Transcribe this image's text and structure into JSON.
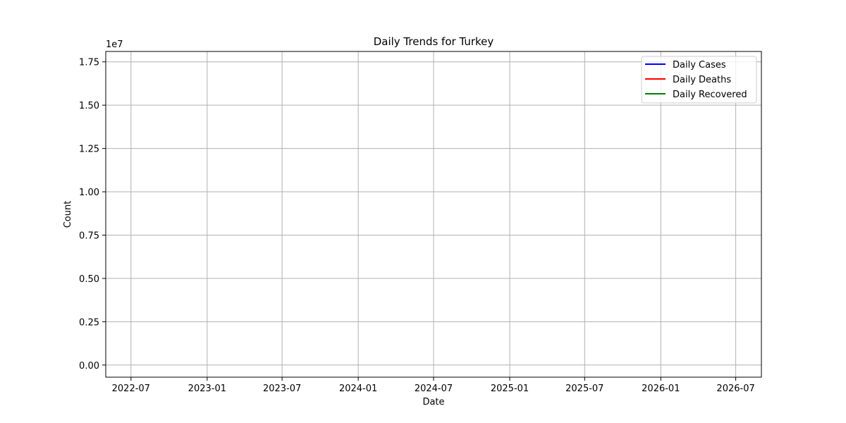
{
  "chart_data": {
    "type": "line",
    "title": "Daily Trends for Turkey",
    "xlabel": "Date",
    "ylabel": "Count",
    "y_scale_label": "1e7",
    "xlim": [
      "2022-05-01",
      "2026-09-01"
    ],
    "ylim": [
      -0.07,
      1.81
    ],
    "x_ticks": [
      "2022-07",
      "2023-01",
      "2023-07",
      "2024-01",
      "2024-07",
      "2025-01",
      "2025-07",
      "2026-01",
      "2026-07"
    ],
    "y_ticks": [
      0.0,
      0.25,
      0.5,
      0.75,
      1.0,
      1.25,
      1.5,
      1.75
    ],
    "y_tick_labels": [
      "0.00",
      "0.25",
      "0.50",
      "0.75",
      "1.00",
      "1.25",
      "1.50",
      "1.75"
    ],
    "grid": true,
    "legend_position": "top-right",
    "series": [
      {
        "name": "Daily Cases",
        "color": "#0000ff",
        "points": []
      },
      {
        "name": "Daily Deaths",
        "color": "#ff0000",
        "points": []
      },
      {
        "name": "Daily Recovered",
        "color": "#008000",
        "points": []
      }
    ]
  }
}
